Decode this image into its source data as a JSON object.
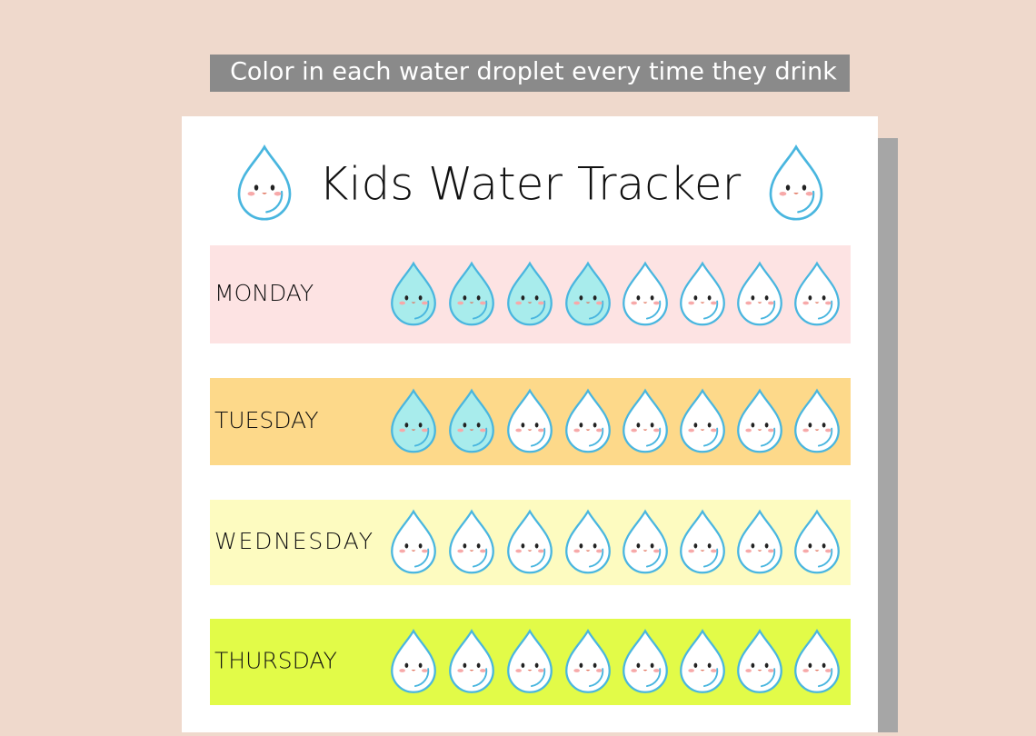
{
  "banner": "Color in each water droplet every time they drink",
  "title": "Kids Water Tracker",
  "rows": [
    {
      "day": "MONDAY",
      "color": "#fde3e3",
      "droplets": [
        true,
        true,
        true,
        true,
        false,
        false,
        false,
        false
      ]
    },
    {
      "day": "TUESDAY",
      "color": "#fdd98a",
      "droplets": [
        true,
        true,
        false,
        false,
        false,
        false,
        false,
        false
      ]
    },
    {
      "day": "WEDNESDAY",
      "color": "#fdfbc0",
      "droplets": [
        false,
        false,
        false,
        false,
        false,
        false,
        false,
        false
      ]
    },
    {
      "day": "THURSDAY",
      "color": "#e2fb48",
      "droplets": [
        false,
        false,
        false,
        false,
        false,
        false,
        false,
        false
      ]
    }
  ]
}
